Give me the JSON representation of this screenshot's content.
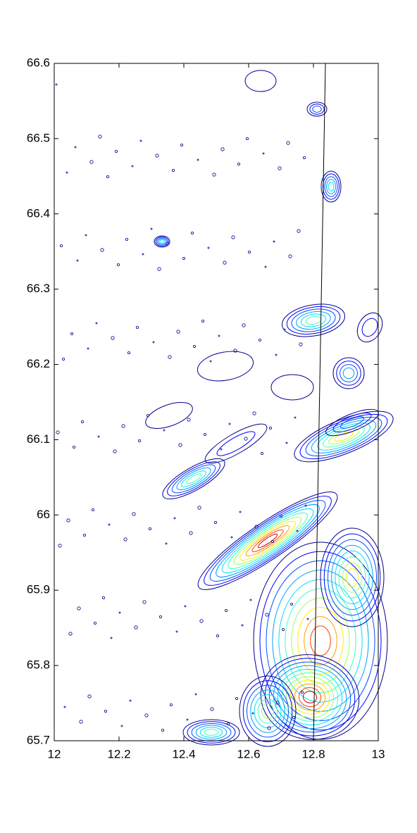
{
  "chart_data": {
    "type": "contour",
    "xlim": [
      12,
      13
    ],
    "xticks": [
      12,
      12.2,
      12.4,
      12.6,
      12.8,
      13
    ],
    "ylim": [
      65.7,
      66.6
    ],
    "yticks": [
      65.7,
      65.8,
      65.9,
      66,
      66.1,
      66.2,
      66.3,
      66.4,
      66.5,
      66.6
    ],
    "series": [
      {
        "color": "#000000",
        "x": [
          12.837,
          12.8
        ],
        "values": [
          66.6,
          65.7
        ]
      }
    ]
  }
}
